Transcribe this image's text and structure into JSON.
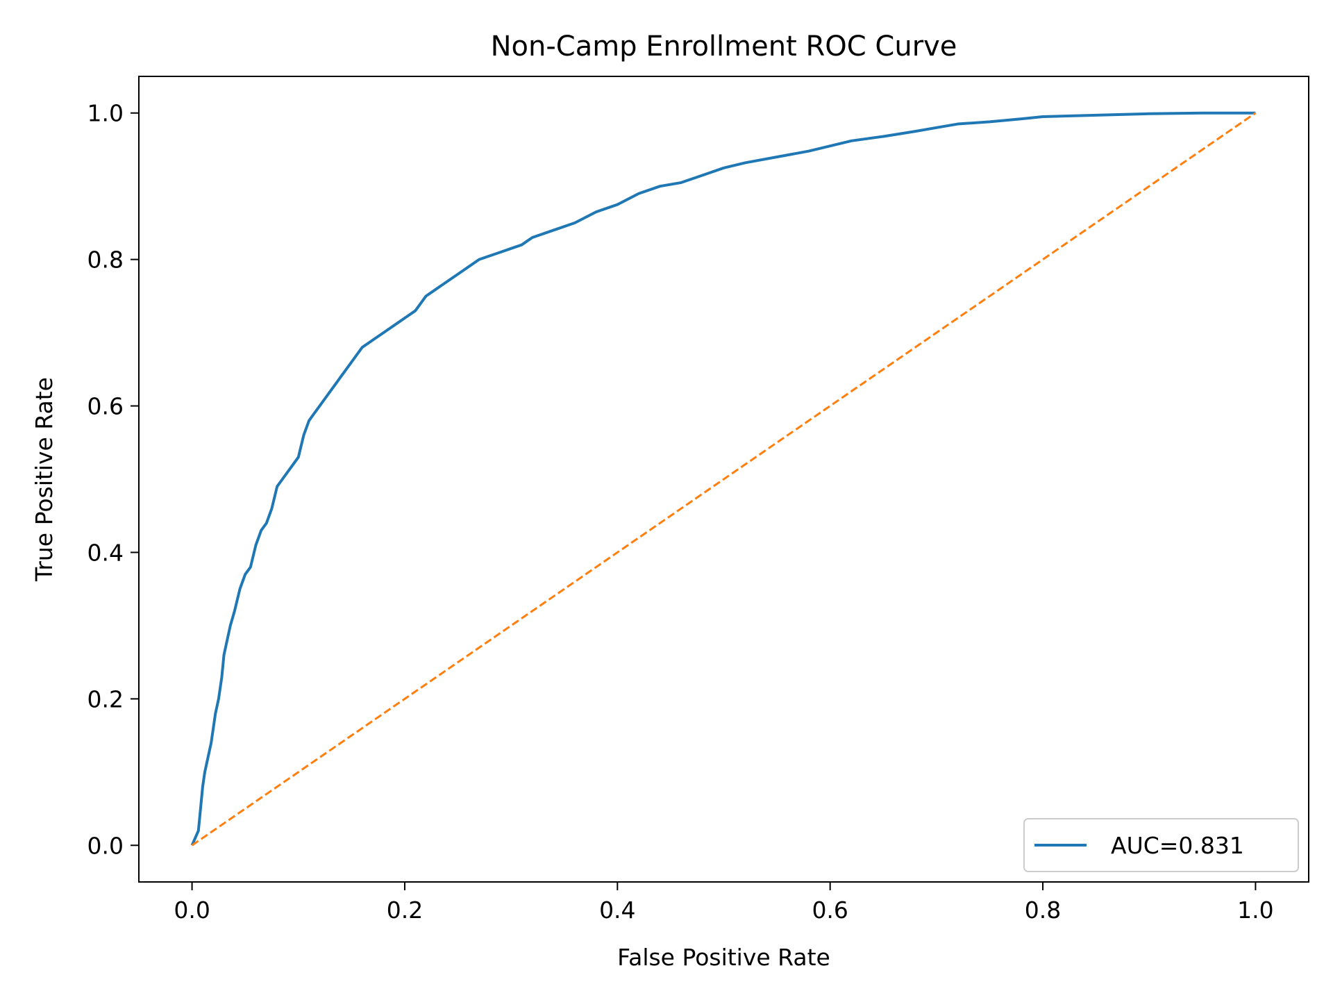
{
  "chart_data": {
    "type": "line",
    "title": "Non-Camp Enrollment ROC Curve",
    "xlabel": "False Positive Rate",
    "ylabel": "True Positive Rate",
    "xlim": [
      -0.05,
      1.05
    ],
    "ylim": [
      -0.05,
      1.05
    ],
    "xticks": [
      "0.0",
      "0.2",
      "0.4",
      "0.6",
      "0.8",
      "1.0"
    ],
    "yticks": [
      "0.0",
      "0.2",
      "0.4",
      "0.6",
      "0.8",
      "1.0"
    ],
    "grid": false,
    "legend_position": "lower-right",
    "series": [
      {
        "name": "AUC=0.831",
        "color": "#1f77b4",
        "style": "solid",
        "x": [
          0.0,
          0.003,
          0.006,
          0.008,
          0.01,
          0.012,
          0.015,
          0.018,
          0.02,
          0.022,
          0.025,
          0.028,
          0.03,
          0.033,
          0.036,
          0.04,
          0.045,
          0.05,
          0.055,
          0.06,
          0.065,
          0.07,
          0.075,
          0.08,
          0.085,
          0.09,
          0.095,
          0.1,
          0.105,
          0.11,
          0.115,
          0.12,
          0.125,
          0.13,
          0.135,
          0.14,
          0.15,
          0.16,
          0.17,
          0.18,
          0.19,
          0.2,
          0.21,
          0.22,
          0.23,
          0.24,
          0.25,
          0.27,
          0.29,
          0.3,
          0.31,
          0.32,
          0.34,
          0.36,
          0.38,
          0.4,
          0.42,
          0.44,
          0.46,
          0.48,
          0.5,
          0.52,
          0.55,
          0.58,
          0.6,
          0.62,
          0.65,
          0.68,
          0.7,
          0.72,
          0.75,
          0.78,
          0.8,
          0.85,
          0.9,
          0.95,
          1.0
        ],
        "y": [
          0.0,
          0.01,
          0.02,
          0.05,
          0.08,
          0.1,
          0.12,
          0.14,
          0.16,
          0.18,
          0.2,
          0.23,
          0.26,
          0.28,
          0.3,
          0.32,
          0.35,
          0.37,
          0.38,
          0.41,
          0.43,
          0.44,
          0.46,
          0.49,
          0.5,
          0.51,
          0.52,
          0.53,
          0.56,
          0.58,
          0.59,
          0.6,
          0.61,
          0.62,
          0.63,
          0.64,
          0.66,
          0.68,
          0.69,
          0.7,
          0.71,
          0.72,
          0.73,
          0.75,
          0.76,
          0.77,
          0.78,
          0.8,
          0.81,
          0.815,
          0.82,
          0.83,
          0.84,
          0.85,
          0.865,
          0.875,
          0.89,
          0.9,
          0.905,
          0.915,
          0.925,
          0.932,
          0.94,
          0.948,
          0.955,
          0.962,
          0.968,
          0.975,
          0.98,
          0.985,
          0.988,
          0.992,
          0.995,
          0.997,
          0.999,
          1.0,
          1.0
        ]
      },
      {
        "color": "#ff7f0e",
        "style": "dashed",
        "x": [
          0.0,
          1.0
        ],
        "y": [
          0.0,
          1.0
        ]
      }
    ]
  }
}
